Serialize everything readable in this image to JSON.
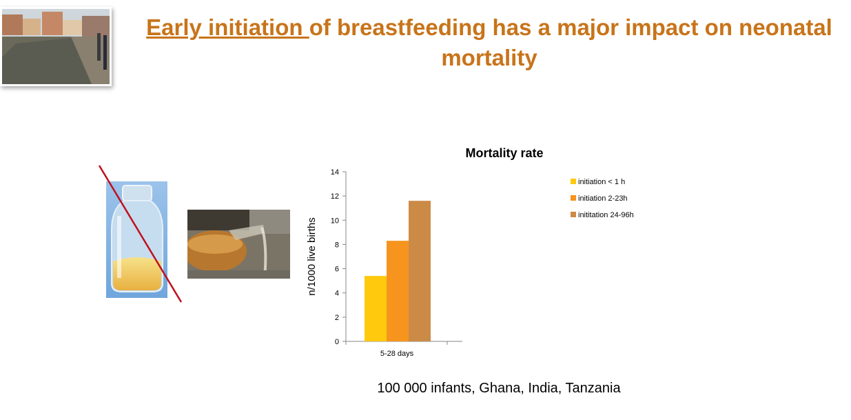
{
  "slide": {
    "title_underlined": "Early initiation ",
    "title_rest": "of breastfeeding has a major impact on neonatal mortality",
    "footnote": "100 000 infants, Ghana, India, Tanzania"
  },
  "colors": {
    "title": "#c8741a",
    "series1": "#ffc90e",
    "series2": "#f7941d",
    "series3": "#cc8a47",
    "crossout": "#c0101c"
  },
  "chart_data": {
    "type": "bar",
    "title": "Mortality rate",
    "xlabel": "",
    "ylabel": "n/1000 live births",
    "categories": [
      "5-28 days"
    ],
    "ylim": [
      0,
      14
    ],
    "yticks": [
      0,
      2,
      4,
      6,
      8,
      10,
      12,
      14
    ],
    "legend_position": "right",
    "series": [
      {
        "name": "initiation < 1 h",
        "values": [
          5.4
        ]
      },
      {
        "name": "initiation 2-23h",
        "values": [
          8.3
        ]
      },
      {
        "name": "inititation 24-96h",
        "values": [
          11.6
        ]
      }
    ]
  }
}
